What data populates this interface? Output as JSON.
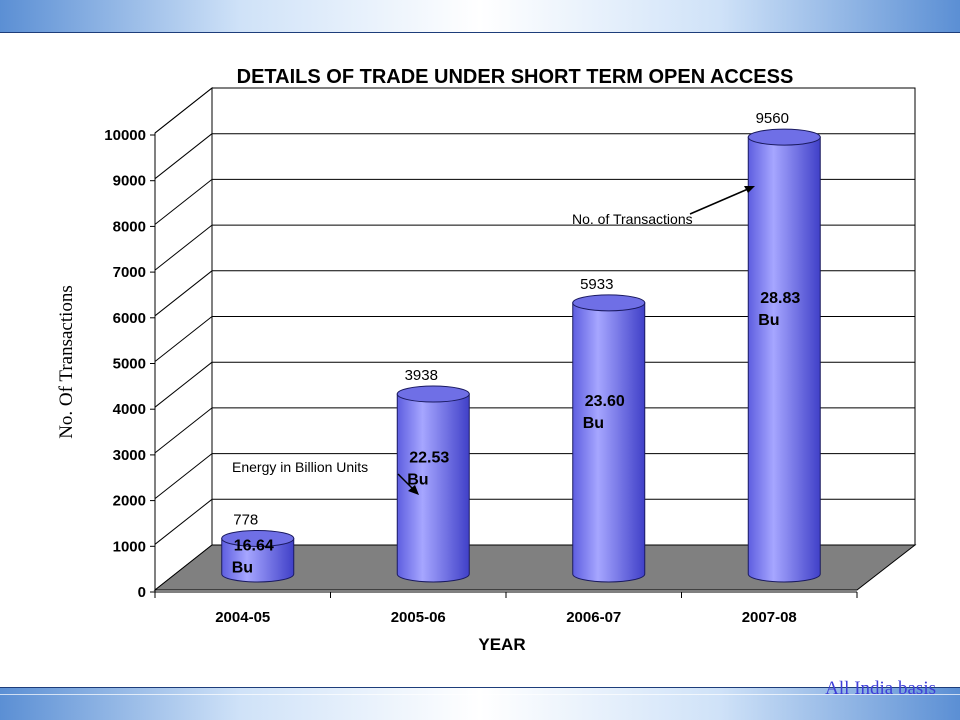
{
  "footer": {
    "note": "All India basis"
  },
  "chart_data": {
    "type": "bar",
    "title": "DETAILS OF TRADE UNDER SHORT TERM OPEN ACCESS",
    "xlabel": "YEAR",
    "ylabel": "No. Of Transactions",
    "categories": [
      "2004-05",
      "2005-06",
      "2006-07",
      "2007-08"
    ],
    "series": [
      {
        "name": "No. of Transactions",
        "values": [
          778,
          3938,
          5933,
          9560
        ]
      }
    ],
    "energy_labels": [
      {
        "value": "16.64",
        "unit": "Bu"
      },
      {
        "value": "22.53",
        "unit": "Bu"
      },
      {
        "value": "23.60",
        "unit": "Bu"
      },
      {
        "value": "28.83",
        "unit": "Bu"
      }
    ],
    "ylim": [
      0,
      10000
    ],
    "yticks": [
      0,
      1000,
      2000,
      3000,
      4000,
      5000,
      6000,
      7000,
      8000,
      9000,
      10000
    ],
    "grid": true,
    "annotations": {
      "transactions": "No. of Transactions",
      "energy": "Energy in Billion Units"
    },
    "colors": {
      "bar_dark": "#4a4ad8",
      "bar_light": "#a6a6ff",
      "floor": "#808080"
    }
  }
}
